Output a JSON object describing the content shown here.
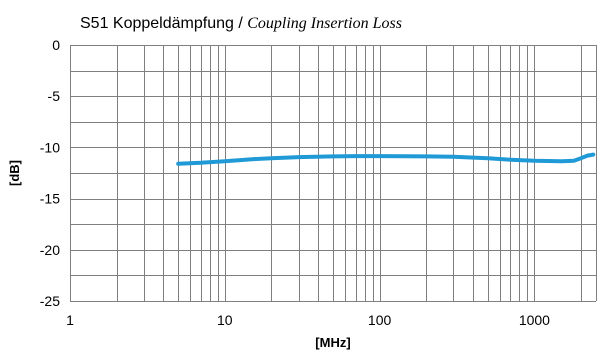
{
  "chart_data": {
    "type": "line",
    "title_main": "S51 Koppeldämpfung / ",
    "title_sub": "Coupling Insertion Loss",
    "xlabel": "[MHz]",
    "ylabel": "[dB]",
    "xscale": "log",
    "xlim": [
      1,
      2500
    ],
    "ylim": [
      -25,
      0
    ],
    "x_ticks": [
      1,
      10,
      100,
      1000
    ],
    "y_ticks": [
      0,
      -5,
      -10,
      -15,
      -20,
      -25
    ],
    "grid": true,
    "legend": "none",
    "series_color": "#1f9ad6",
    "series": [
      {
        "x": [
          5,
          7,
          10,
          15,
          20,
          30,
          50,
          70,
          100,
          150,
          200,
          300,
          500,
          700,
          1000,
          1500,
          1800,
          2000,
          2200,
          2400
        ],
        "values": [
          -11.6,
          -11.5,
          -11.35,
          -11.15,
          -11.05,
          -10.95,
          -10.88,
          -10.85,
          -10.85,
          -10.87,
          -10.88,
          -10.92,
          -11.05,
          -11.2,
          -11.3,
          -11.35,
          -11.3,
          -11.05,
          -10.8,
          -10.7
        ]
      }
    ]
  }
}
